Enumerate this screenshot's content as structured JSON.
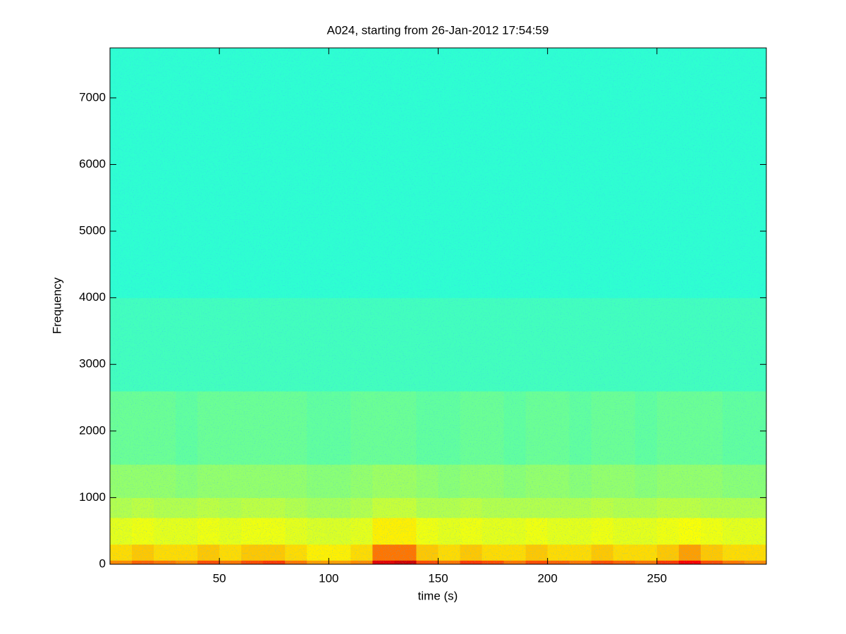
{
  "chart_data": {
    "type": "heatmap",
    "title": "A024, starting from 26-Jan-2012 17:54:59",
    "xlabel": "time (s)",
    "ylabel": "Frequency",
    "xlim": [
      0,
      300
    ],
    "ylim": [
      0,
      7750
    ],
    "xticks": [
      50,
      100,
      150,
      200,
      250
    ],
    "yticks": [
      0,
      1000,
      2000,
      3000,
      4000,
      5000,
      6000,
      7000
    ],
    "colormap": "jet",
    "clim": [
      0,
      1
    ],
    "x_edges": [
      0,
      10,
      20,
      30,
      40,
      50,
      60,
      70,
      80,
      90,
      100,
      110,
      120,
      130,
      140,
      150,
      160,
      170,
      180,
      190,
      200,
      210,
      220,
      230,
      240,
      250,
      260,
      270,
      280,
      290,
      300
    ],
    "y_edges": [
      0,
      60,
      300,
      700,
      1000,
      1500,
      2600,
      4000,
      7750
    ],
    "z": [
      [
        0.74,
        0.78,
        0.76,
        0.74,
        0.8,
        0.76,
        0.8,
        0.82,
        0.76,
        0.72,
        0.72,
        0.74,
        0.9,
        0.92,
        0.8,
        0.76,
        0.82,
        0.8,
        0.76,
        0.8,
        0.78,
        0.76,
        0.8,
        0.78,
        0.76,
        0.82,
        0.88,
        0.8,
        0.76,
        0.74
      ],
      [
        0.66,
        0.68,
        0.66,
        0.66,
        0.68,
        0.66,
        0.68,
        0.68,
        0.66,
        0.64,
        0.64,
        0.66,
        0.76,
        0.76,
        0.68,
        0.66,
        0.68,
        0.66,
        0.66,
        0.68,
        0.66,
        0.66,
        0.68,
        0.66,
        0.66,
        0.68,
        0.72,
        0.68,
        0.66,
        0.66
      ],
      [
        0.6,
        0.61,
        0.6,
        0.6,
        0.61,
        0.6,
        0.61,
        0.61,
        0.6,
        0.59,
        0.59,
        0.6,
        0.64,
        0.64,
        0.61,
        0.6,
        0.61,
        0.6,
        0.6,
        0.61,
        0.6,
        0.6,
        0.61,
        0.6,
        0.6,
        0.61,
        0.62,
        0.61,
        0.6,
        0.6
      ],
      [
        0.55,
        0.56,
        0.55,
        0.55,
        0.56,
        0.55,
        0.56,
        0.56,
        0.55,
        0.54,
        0.54,
        0.55,
        0.57,
        0.57,
        0.55,
        0.55,
        0.56,
        0.55,
        0.55,
        0.55,
        0.55,
        0.55,
        0.56,
        0.55,
        0.55,
        0.56,
        0.56,
        0.55,
        0.55,
        0.55
      ],
      [
        0.52,
        0.52,
        0.52,
        0.51,
        0.52,
        0.52,
        0.52,
        0.52,
        0.52,
        0.51,
        0.51,
        0.52,
        0.53,
        0.53,
        0.52,
        0.51,
        0.52,
        0.52,
        0.51,
        0.52,
        0.52,
        0.51,
        0.52,
        0.52,
        0.51,
        0.52,
        0.52,
        0.52,
        0.51,
        0.51
      ],
      [
        0.48,
        0.48,
        0.48,
        0.47,
        0.48,
        0.48,
        0.48,
        0.48,
        0.48,
        0.47,
        0.47,
        0.48,
        0.48,
        0.48,
        0.47,
        0.47,
        0.48,
        0.48,
        0.47,
        0.48,
        0.48,
        0.47,
        0.48,
        0.48,
        0.47,
        0.48,
        0.48,
        0.48,
        0.47,
        0.47
      ],
      [
        0.44,
        0.44,
        0.44,
        0.44,
        0.44,
        0.44,
        0.44,
        0.44,
        0.44,
        0.44,
        0.44,
        0.44,
        0.44,
        0.44,
        0.44,
        0.44,
        0.44,
        0.44,
        0.44,
        0.44,
        0.44,
        0.44,
        0.44,
        0.44,
        0.44,
        0.44,
        0.44,
        0.44,
        0.44,
        0.44
      ],
      [
        0.42,
        0.42,
        0.42,
        0.42,
        0.42,
        0.42,
        0.42,
        0.42,
        0.42,
        0.42,
        0.42,
        0.42,
        0.42,
        0.42,
        0.42,
        0.42,
        0.42,
        0.42,
        0.42,
        0.42,
        0.42,
        0.42,
        0.42,
        0.42,
        0.42,
        0.42,
        0.42,
        0.42,
        0.42,
        0.42
      ]
    ]
  }
}
